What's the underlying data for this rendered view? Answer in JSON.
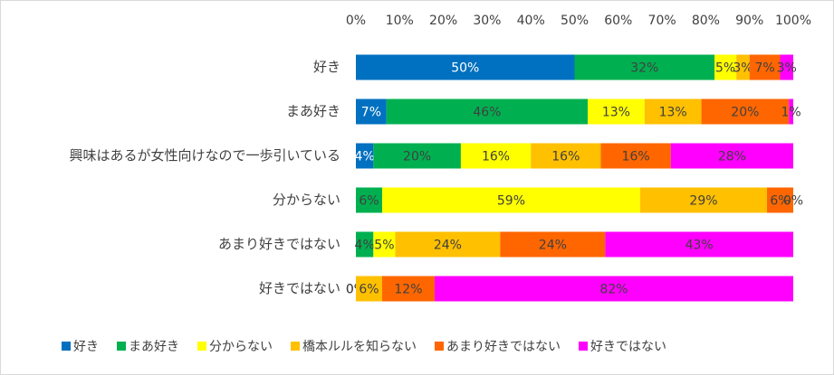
{
  "chart_data": {
    "type": "stacked-bar-horizontal",
    "categories": [
      "好き",
      "まあ好き",
      "興味はあるが女性向けなので一歩引いている",
      "分からない",
      "あまり好きではない",
      "好きではない"
    ],
    "series": [
      {
        "name": "好き",
        "color": "#0070c0",
        "label_color": "#ffffff",
        "values": [
          50,
          7,
          4,
          0,
          0,
          0
        ],
        "value_labels": [
          "50%",
          "7%",
          "4%",
          "0%",
          "0%",
          "0%"
        ]
      },
      {
        "name": "まあ好き",
        "color": "#00b050",
        "label_color": "#404040",
        "values": [
          32,
          46,
          20,
          6,
          4,
          0
        ],
        "value_labels": [
          "32%",
          "46%",
          "20%",
          "6%",
          "4%",
          "0%"
        ]
      },
      {
        "name": "分からない",
        "color": "#ffff00",
        "label_color": "#404040",
        "values": [
          5,
          13,
          16,
          59,
          5,
          0
        ],
        "value_labels": [
          "5%",
          "13%",
          "16%",
          "59%",
          "5%",
          "0%"
        ]
      },
      {
        "name": "橋本ルルを知らない",
        "color": "#ffc000",
        "label_color": "#404040",
        "values": [
          3,
          13,
          16,
          29,
          24,
          6
        ],
        "value_labels": [
          "3%",
          "13%",
          "16%",
          "29%",
          "24%",
          "6%"
        ]
      },
      {
        "name": "あまり好きではない",
        "color": "#ff6600",
        "label_color": "#404040",
        "values": [
          7,
          20,
          16,
          6,
          24,
          12
        ],
        "value_labels": [
          "7%",
          "20%",
          "16%",
          "6%",
          "24%",
          "12%"
        ]
      },
      {
        "name": "好きではない",
        "color": "#ff00ff",
        "label_color": "#404040",
        "values": [
          3,
          1,
          28,
          0,
          43,
          82
        ],
        "value_labels": [
          "3%",
          "1%",
          "28%",
          "0%",
          "43%",
          "82%"
        ]
      }
    ],
    "xlim": [
      0,
      100
    ],
    "xticks": [
      {
        "value": 0,
        "label": "0%"
      },
      {
        "value": 10,
        "label": "10%"
      },
      {
        "value": 20,
        "label": "20%"
      },
      {
        "value": 30,
        "label": "30%"
      },
      {
        "value": 40,
        "label": "40%"
      },
      {
        "value": 50,
        "label": "50%"
      },
      {
        "value": 60,
        "label": "60%"
      },
      {
        "value": 70,
        "label": "70%"
      },
      {
        "value": 80,
        "label": "80%"
      },
      {
        "value": 90,
        "label": "90%"
      },
      {
        "value": 100,
        "label": "100%"
      }
    ],
    "legend": "bottom"
  }
}
